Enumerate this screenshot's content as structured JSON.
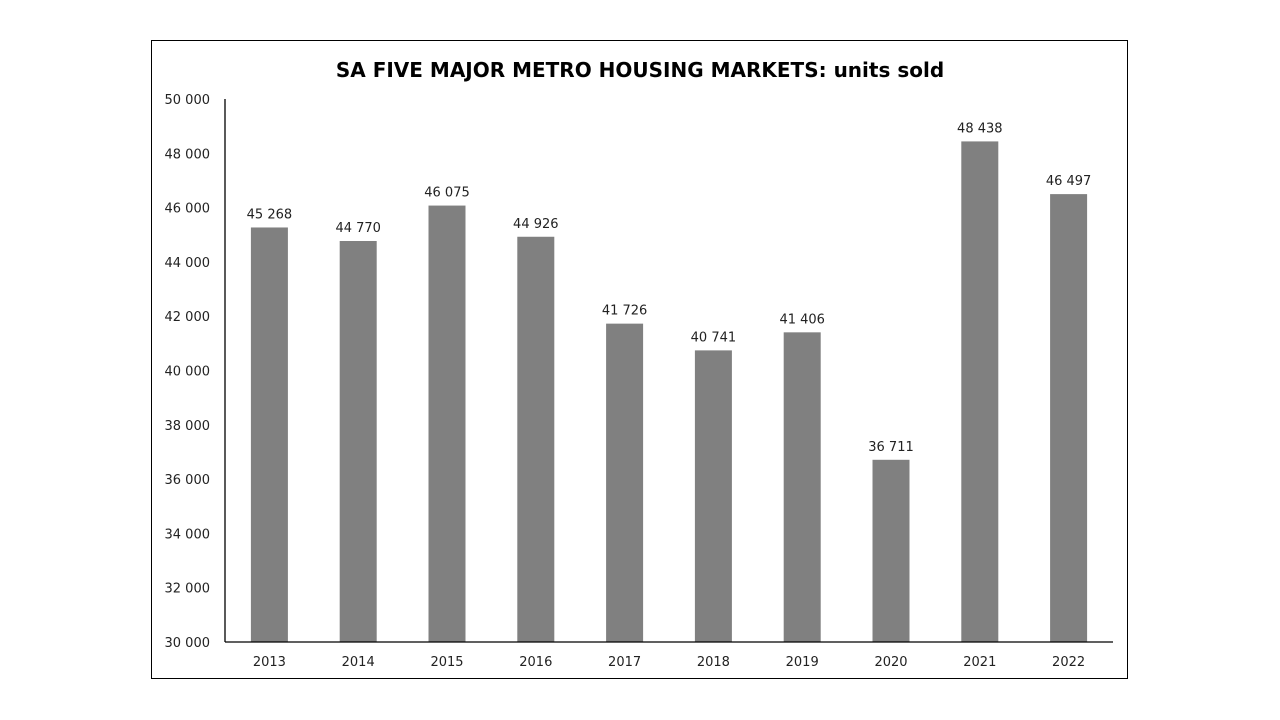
{
  "chart_data": {
    "type": "bar",
    "title": "SA FIVE MAJOR METRO HOUSING MARKETS: units sold",
    "xlabel": "",
    "ylabel": "",
    "categories": [
      "2013",
      "2014",
      "2015",
      "2016",
      "2017",
      "2018",
      "2019",
      "2020",
      "2021",
      "2022"
    ],
    "values": [
      45268,
      44770,
      46075,
      44926,
      41726,
      40741,
      41406,
      36711,
      48438,
      46497
    ],
    "data_labels": [
      "45 268",
      "44 770",
      "46 075",
      "44 926",
      "41 726",
      "40 741",
      "41 406",
      "36 711",
      "48 438",
      "46 497"
    ],
    "ylim": [
      30000,
      50000
    ],
    "yticks": [
      30000,
      32000,
      34000,
      36000,
      38000,
      40000,
      42000,
      44000,
      46000,
      48000,
      50000
    ],
    "ytick_labels": [
      "30 000",
      "32 000",
      "34 000",
      "36 000",
      "38 000",
      "40 000",
      "42 000",
      "44 000",
      "46 000",
      "48 000",
      "50 000"
    ],
    "grid": false,
    "legend": "none",
    "bar_color": "#808080"
  }
}
